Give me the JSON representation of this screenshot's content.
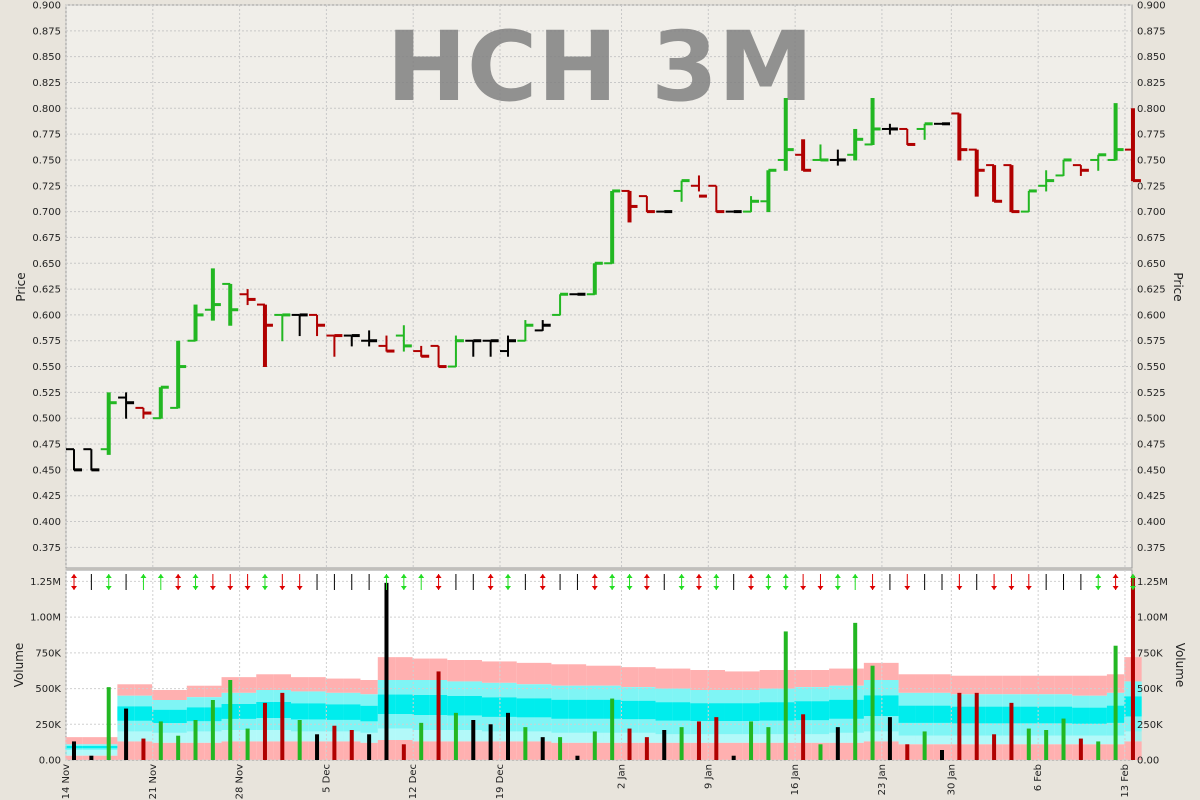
{
  "chart_data": [
    {
      "type": "ohlc",
      "title": "HCH 3M",
      "xlabel": "",
      "ylabel": "Price",
      "ylim": [
        0.355,
        0.9
      ],
      "yticks": [
        "0.375",
        "0.400",
        "0.425",
        "0.450",
        "0.475",
        "0.500",
        "0.525",
        "0.550",
        "0.575",
        "0.600",
        "0.625",
        "0.650",
        "0.675",
        "0.700",
        "0.725",
        "0.750",
        "0.775",
        "0.800",
        "0.825",
        "0.850",
        "0.875",
        "0.900"
      ],
      "grid": true,
      "colors": {
        "up": "#22b722",
        "down": "#b00000",
        "flat": "#000000"
      },
      "bars": [
        {
          "day": 0,
          "o": 0.47,
          "h": 0.47,
          "l": 0.45,
          "c": 0.45,
          "dir": "flat"
        },
        {
          "day": 1,
          "o": 0.47,
          "h": 0.47,
          "l": 0.45,
          "c": 0.45,
          "dir": "flat"
        },
        {
          "day": 2,
          "o": 0.47,
          "h": 0.525,
          "l": 0.465,
          "c": 0.515,
          "dir": "up"
        },
        {
          "day": 3,
          "o": 0.52,
          "h": 0.525,
          "l": 0.5,
          "c": 0.515,
          "dir": "flat"
        },
        {
          "day": 4,
          "o": 0.51,
          "h": 0.51,
          "l": 0.5,
          "c": 0.505,
          "dir": "down"
        },
        {
          "day": 5,
          "o": 0.5,
          "h": 0.53,
          "l": 0.5,
          "c": 0.53,
          "dir": "up"
        },
        {
          "day": 6,
          "o": 0.51,
          "h": 0.575,
          "l": 0.51,
          "c": 0.55,
          "dir": "up"
        },
        {
          "day": 7,
          "o": 0.575,
          "h": 0.61,
          "l": 0.575,
          "c": 0.6,
          "dir": "up"
        },
        {
          "day": 8,
          "o": 0.605,
          "h": 0.645,
          "l": 0.595,
          "c": 0.61,
          "dir": "up"
        },
        {
          "day": 9,
          "o": 0.63,
          "h": 0.63,
          "l": 0.59,
          "c": 0.605,
          "dir": "up"
        },
        {
          "day": 10,
          "o": 0.62,
          "h": 0.625,
          "l": 0.61,
          "c": 0.615,
          "dir": "down"
        },
        {
          "day": 11,
          "o": 0.61,
          "h": 0.61,
          "l": 0.55,
          "c": 0.59,
          "dir": "down"
        },
        {
          "day": 12,
          "o": 0.6,
          "h": 0.6,
          "l": 0.575,
          "c": 0.6,
          "dir": "up"
        },
        {
          "day": 13,
          "o": 0.6,
          "h": 0.6,
          "l": 0.58,
          "c": 0.6,
          "dir": "flat"
        },
        {
          "day": 14,
          "o": 0.6,
          "h": 0.6,
          "l": 0.58,
          "c": 0.59,
          "dir": "down"
        },
        {
          "day": 15,
          "o": 0.58,
          "h": 0.58,
          "l": 0.56,
          "c": 0.58,
          "dir": "down"
        },
        {
          "day": 16,
          "o": 0.58,
          "h": 0.58,
          "l": 0.57,
          "c": 0.58,
          "dir": "flat"
        },
        {
          "day": 17,
          "o": 0.575,
          "h": 0.585,
          "l": 0.57,
          "c": 0.575,
          "dir": "flat"
        },
        {
          "day": 18,
          "o": 0.57,
          "h": 0.58,
          "l": 0.565,
          "c": 0.565,
          "dir": "down"
        },
        {
          "day": 19,
          "o": 0.58,
          "h": 0.59,
          "l": 0.565,
          "c": 0.57,
          "dir": "up"
        },
        {
          "day": 20,
          "o": 0.565,
          "h": 0.57,
          "l": 0.56,
          "c": 0.56,
          "dir": "down"
        },
        {
          "day": 21,
          "o": 0.57,
          "h": 0.57,
          "l": 0.55,
          "c": 0.55,
          "dir": "down"
        },
        {
          "day": 22,
          "o": 0.55,
          "h": 0.58,
          "l": 0.55,
          "c": 0.575,
          "dir": "up"
        },
        {
          "day": 23,
          "o": 0.575,
          "h": 0.575,
          "l": 0.56,
          "c": 0.575,
          "dir": "flat"
        },
        {
          "day": 24,
          "o": 0.575,
          "h": 0.575,
          "l": 0.56,
          "c": 0.575,
          "dir": "flat"
        },
        {
          "day": 25,
          "o": 0.565,
          "h": 0.58,
          "l": 0.56,
          "c": 0.575,
          "dir": "flat"
        },
        {
          "day": 26,
          "o": 0.575,
          "h": 0.595,
          "l": 0.575,
          "c": 0.59,
          "dir": "up"
        },
        {
          "day": 27,
          "o": 0.585,
          "h": 0.595,
          "l": 0.585,
          "c": 0.59,
          "dir": "flat"
        },
        {
          "day": 28,
          "o": 0.6,
          "h": 0.62,
          "l": 0.6,
          "c": 0.62,
          "dir": "up"
        },
        {
          "day": 29,
          "o": 0.62,
          "h": 0.62,
          "l": 0.62,
          "c": 0.62,
          "dir": "flat"
        },
        {
          "day": 30,
          "o": 0.62,
          "h": 0.65,
          "l": 0.62,
          "c": 0.65,
          "dir": "up"
        },
        {
          "day": 31,
          "o": 0.65,
          "h": 0.72,
          "l": 0.65,
          "c": 0.72,
          "dir": "up"
        },
        {
          "day": 32,
          "o": 0.72,
          "h": 0.72,
          "l": 0.69,
          "c": 0.705,
          "dir": "down"
        },
        {
          "day": 33,
          "o": 0.715,
          "h": 0.715,
          "l": 0.7,
          "c": 0.7,
          "dir": "down"
        },
        {
          "day": 34,
          "o": 0.7,
          "h": 0.7,
          "l": 0.7,
          "c": 0.7,
          "dir": "flat"
        },
        {
          "day": 35,
          "o": 0.72,
          "h": 0.73,
          "l": 0.71,
          "c": 0.73,
          "dir": "up"
        },
        {
          "day": 36,
          "o": 0.725,
          "h": 0.735,
          "l": 0.72,
          "c": 0.715,
          "dir": "down"
        },
        {
          "day": 37,
          "o": 0.725,
          "h": 0.725,
          "l": 0.7,
          "c": 0.7,
          "dir": "down"
        },
        {
          "day": 38,
          "o": 0.7,
          "h": 0.7,
          "l": 0.7,
          "c": 0.7,
          "dir": "flat"
        },
        {
          "day": 39,
          "o": 0.7,
          "h": 0.715,
          "l": 0.7,
          "c": 0.71,
          "dir": "up"
        },
        {
          "day": 40,
          "o": 0.71,
          "h": 0.74,
          "l": 0.7,
          "c": 0.74,
          "dir": "up"
        },
        {
          "day": 41,
          "o": 0.75,
          "h": 0.81,
          "l": 0.74,
          "c": 0.76,
          "dir": "up"
        },
        {
          "day": 42,
          "o": 0.755,
          "h": 0.77,
          "l": 0.74,
          "c": 0.74,
          "dir": "down"
        },
        {
          "day": 43,
          "o": 0.75,
          "h": 0.765,
          "l": 0.75,
          "c": 0.75,
          "dir": "up"
        },
        {
          "day": 44,
          "o": 0.75,
          "h": 0.76,
          "l": 0.745,
          "c": 0.75,
          "dir": "flat"
        },
        {
          "day": 45,
          "o": 0.755,
          "h": 0.78,
          "l": 0.75,
          "c": 0.77,
          "dir": "up"
        },
        {
          "day": 46,
          "o": 0.765,
          "h": 0.81,
          "l": 0.765,
          "c": 0.78,
          "dir": "up"
        },
        {
          "day": 47,
          "o": 0.78,
          "h": 0.785,
          "l": 0.775,
          "c": 0.78,
          "dir": "flat"
        },
        {
          "day": 48,
          "o": 0.78,
          "h": 0.78,
          "l": 0.765,
          "c": 0.765,
          "dir": "down"
        },
        {
          "day": 49,
          "o": 0.78,
          "h": 0.785,
          "l": 0.77,
          "c": 0.785,
          "dir": "up"
        },
        {
          "day": 50,
          "o": 0.785,
          "h": 0.785,
          "l": 0.785,
          "c": 0.785,
          "dir": "flat"
        },
        {
          "day": 51,
          "o": 0.795,
          "h": 0.795,
          "l": 0.75,
          "c": 0.76,
          "dir": "down"
        },
        {
          "day": 52,
          "o": 0.76,
          "h": 0.76,
          "l": 0.715,
          "c": 0.74,
          "dir": "down"
        },
        {
          "day": 53,
          "o": 0.745,
          "h": 0.745,
          "l": 0.71,
          "c": 0.71,
          "dir": "down"
        },
        {
          "day": 54,
          "o": 0.745,
          "h": 0.745,
          "l": 0.7,
          "c": 0.7,
          "dir": "down"
        },
        {
          "day": 55,
          "o": 0.7,
          "h": 0.72,
          "l": 0.7,
          "c": 0.72,
          "dir": "up"
        },
        {
          "day": 56,
          "o": 0.725,
          "h": 0.74,
          "l": 0.72,
          "c": 0.73,
          "dir": "up"
        },
        {
          "day": 57,
          "o": 0.735,
          "h": 0.75,
          "l": 0.735,
          "c": 0.75,
          "dir": "up"
        },
        {
          "day": 58,
          "o": 0.745,
          "h": 0.745,
          "l": 0.735,
          "c": 0.74,
          "dir": "down"
        },
        {
          "day": 59,
          "o": 0.75,
          "h": 0.755,
          "l": 0.74,
          "c": 0.755,
          "dir": "up"
        },
        {
          "day": 60,
          "o": 0.75,
          "h": 0.805,
          "l": 0.75,
          "c": 0.76,
          "dir": "up"
        },
        {
          "day": 61,
          "o": 0.76,
          "h": 0.8,
          "l": 0.73,
          "c": 0.73,
          "dir": "down"
        }
      ]
    },
    {
      "type": "bar",
      "xlabel": "",
      "ylabel": "Volume",
      "ylim": [
        0,
        1330000
      ],
      "yticks": [
        "0.00",
        "250K",
        "500K",
        "750K",
        "1.00M",
        "1.25M"
      ],
      "ytick_values": [
        0,
        250000,
        500000,
        750000,
        1000000,
        1250000
      ],
      "xticks": [
        {
          "day": 0,
          "label": "14 Nov"
        },
        {
          "day": 5,
          "label": "21 Nov"
        },
        {
          "day": 10,
          "label": "28 Nov"
        },
        {
          "day": 15,
          "label": "5 Dec"
        },
        {
          "day": 20,
          "label": "12 Dec"
        },
        {
          "day": 25,
          "label": "19 Dec"
        },
        {
          "day": 32,
          "label": "2 Jan"
        },
        {
          "day": 37,
          "label": "9 Jan"
        },
        {
          "day": 42,
          "label": "16 Jan"
        },
        {
          "day": 47,
          "label": "23 Jan"
        },
        {
          "day": 51,
          "label": "30 Jan"
        },
        {
          "day": 56,
          "label": "6 Feb"
        },
        {
          "day": 61,
          "label": "13 Feb"
        }
      ],
      "volumes": [
        130000,
        30000,
        510000,
        360000,
        150000,
        270000,
        170000,
        280000,
        420000,
        560000,
        220000,
        400000,
        470000,
        280000,
        180000,
        240000,
        210000,
        180000,
        1240000,
        110000,
        260000,
        620000,
        330000,
        280000,
        250000,
        330000,
        230000,
        160000,
        160000,
        30000,
        200000,
        430000,
        220000,
        160000,
        210000,
        230000,
        270000,
        300000,
        30000,
        270000,
        230000,
        900000,
        320000,
        110000,
        230000,
        960000,
        660000,
        300000,
        110000,
        200000,
        70000,
        470000,
        470000,
        180000,
        400000,
        220000,
        210000,
        290000,
        150000,
        130000,
        800000,
        1290000
      ],
      "vol_dir": [
        "flat",
        "flat",
        "up",
        "flat",
        "down",
        "up",
        "up",
        "up",
        "up",
        "up",
        "up",
        "down",
        "down",
        "up",
        "flat",
        "down",
        "down",
        "flat",
        "flat",
        "down",
        "up",
        "down",
        "up",
        "flat",
        "flat",
        "flat",
        "up",
        "flat",
        "up",
        "flat",
        "up",
        "up",
        "down",
        "down",
        "flat",
        "up",
        "down",
        "down",
        "flat",
        "up",
        "up",
        "up",
        "down",
        "up",
        "flat",
        "up",
        "up",
        "flat",
        "down",
        "up",
        "flat",
        "down",
        "down",
        "down",
        "down",
        "up",
        "up",
        "up",
        "down",
        "up",
        "up",
        "down"
      ],
      "bands": {
        "pink_top": [
          160000,
          160000,
          160000,
          530000,
          530000,
          490000,
          490000,
          520000,
          520000,
          580000,
          580000,
          600000,
          600000,
          580000,
          580000,
          570000,
          570000,
          560000,
          720000,
          720000,
          710000,
          710000,
          700000,
          700000,
          690000,
          690000,
          680000,
          680000,
          670000,
          670000,
          660000,
          660000,
          650000,
          650000,
          640000,
          640000,
          630000,
          630000,
          620000,
          620000,
          630000,
          630000,
          630000,
          630000,
          640000,
          640000,
          680000,
          680000,
          600000,
          600000,
          600000,
          590000,
          590000,
          590000,
          590000,
          590000,
          590000,
          590000,
          590000,
          590000,
          600000,
          720000
        ],
        "cyan_top": [
          110000,
          110000,
          110000,
          450000,
          450000,
          420000,
          420000,
          440000,
          440000,
          470000,
          470000,
          490000,
          490000,
          480000,
          480000,
          470000,
          470000,
          460000,
          560000,
          560000,
          560000,
          560000,
          550000,
          550000,
          540000,
          540000,
          530000,
          530000,
          520000,
          520000,
          520000,
          520000,
          510000,
          510000,
          500000,
          500000,
          490000,
          490000,
          490000,
          490000,
          500000,
          500000,
          510000,
          510000,
          520000,
          520000,
          560000,
          560000,
          470000,
          470000,
          470000,
          460000,
          460000,
          460000,
          460000,
          460000,
          460000,
          460000,
          450000,
          450000,
          470000,
          550000
        ],
        "cyan_bot": [
          70000,
          70000,
          70000,
          200000,
          200000,
          190000,
          190000,
          200000,
          200000,
          210000,
          210000,
          210000,
          210000,
          200000,
          200000,
          200000,
          200000,
          190000,
          220000,
          220000,
          210000,
          210000,
          210000,
          210000,
          200000,
          200000,
          200000,
          200000,
          190000,
          190000,
          190000,
          190000,
          190000,
          190000,
          180000,
          180000,
          180000,
          180000,
          180000,
          180000,
          180000,
          180000,
          180000,
          180000,
          190000,
          190000,
          200000,
          200000,
          170000,
          170000,
          170000,
          170000,
          170000,
          170000,
          170000,
          170000,
          170000,
          170000,
          170000,
          170000,
          170000,
          200000
        ],
        "pink_bot": [
          30000,
          30000,
          30000,
          130000,
          130000,
          120000,
          120000,
          120000,
          120000,
          130000,
          130000,
          130000,
          130000,
          130000,
          130000,
          130000,
          130000,
          120000,
          140000,
          140000,
          130000,
          130000,
          130000,
          130000,
          130000,
          130000,
          130000,
          130000,
          120000,
          120000,
          120000,
          120000,
          120000,
          120000,
          120000,
          120000,
          120000,
          120000,
          120000,
          120000,
          120000,
          120000,
          120000,
          120000,
          120000,
          120000,
          130000,
          130000,
          110000,
          110000,
          110000,
          110000,
          110000,
          110000,
          110000,
          110000,
          110000,
          110000,
          110000,
          110000,
          110000,
          130000
        ]
      },
      "marker_dir": [
        "both",
        "flat",
        "both",
        "flat",
        "up",
        "up",
        "both",
        "both",
        "down",
        "down",
        "down",
        "both",
        "down",
        "down",
        "flat",
        "flat",
        "flat",
        "flat",
        "up",
        "both",
        "up",
        "both",
        "flat",
        "flat",
        "both",
        "both",
        "flat",
        "both",
        "flat",
        "flat",
        "both",
        "both",
        "both",
        "both",
        "flat",
        "both",
        "both",
        "both",
        "flat",
        "both",
        "both",
        "both",
        "down",
        "down",
        "both",
        "up",
        "down",
        "flat",
        "down",
        "flat",
        "flat",
        "down",
        "flat",
        "down",
        "down",
        "down",
        "flat",
        "flat",
        "flat",
        "both",
        "both",
        "both"
      ]
    }
  ]
}
